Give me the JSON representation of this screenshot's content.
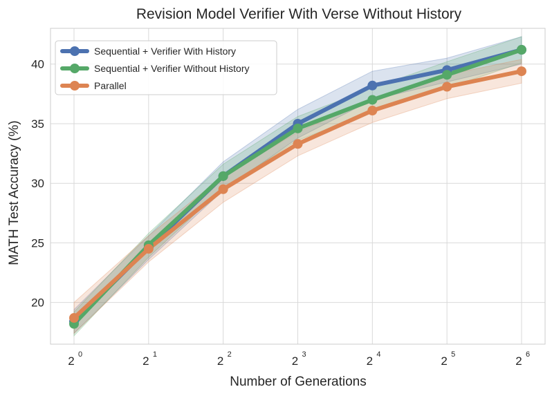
{
  "chart_data": {
    "type": "line",
    "title": "Revision Model Verifier With Verse Without History",
    "xlabel": "Number of Generations",
    "ylabel": "MATH Test Accuracy (%)",
    "x": [
      1,
      2,
      4,
      8,
      16,
      32,
      64
    ],
    "x_scale": "log2",
    "x_tick_labels": [
      {
        "base": "2",
        "exp": "0"
      },
      {
        "base": "2",
        "exp": "1"
      },
      {
        "base": "2",
        "exp": "2"
      },
      {
        "base": "2",
        "exp": "3"
      },
      {
        "base": "2",
        "exp": "4"
      },
      {
        "base": "2",
        "exp": "5"
      },
      {
        "base": "2",
        "exp": "6"
      }
    ],
    "ylim": [
      16.5,
      43
    ],
    "y_ticks": [
      20,
      25,
      30,
      35,
      40
    ],
    "grid": true,
    "legend_position": "top-left",
    "series": [
      {
        "name": "Sequential + Verifier With History",
        "color": "#4c72b0",
        "values": [
          18.4,
          24.6,
          30.6,
          35.0,
          38.2,
          39.5,
          41.2
        ],
        "band_low": [
          17.4,
          23.6,
          29.4,
          33.8,
          37.0,
          38.5,
          40.0
        ],
        "band_high": [
          19.4,
          25.6,
          31.8,
          36.2,
          39.4,
          40.5,
          42.3
        ]
      },
      {
        "name": "Sequential + Verifier Without History",
        "color": "#55a868",
        "values": [
          18.2,
          24.8,
          30.6,
          34.6,
          37.0,
          39.1,
          41.2
        ],
        "band_low": [
          17.2,
          23.8,
          29.6,
          33.6,
          36.0,
          38.0,
          40.1
        ],
        "band_high": [
          19.2,
          25.8,
          31.6,
          35.6,
          38.0,
          40.2,
          42.3
        ]
      },
      {
        "name": "Parallel",
        "color": "#dd8452",
        "values": [
          18.7,
          24.5,
          29.5,
          33.3,
          36.1,
          38.1,
          39.4
        ],
        "band_low": [
          17.4,
          23.4,
          28.4,
          32.3,
          35.1,
          37.1,
          38.4
        ],
        "band_high": [
          20.0,
          25.6,
          30.6,
          34.3,
          37.1,
          39.1,
          40.4
        ]
      }
    ]
  }
}
